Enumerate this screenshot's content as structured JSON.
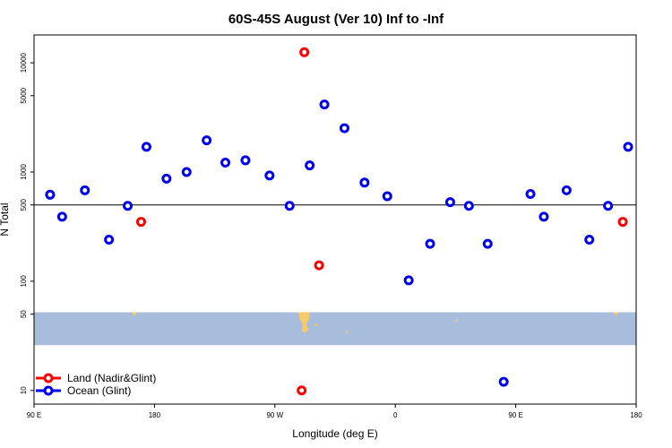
{
  "chart_data": {
    "type": "scatter",
    "title": "60S-45S August (Ver 10)   Inf to -Inf",
    "xlabel": "Longitude (deg E)",
    "ylabel": "N Total",
    "x_axis": {
      "ticks": [
        {
          "pos": 0,
          "label": "90 E"
        },
        {
          "pos": 90,
          "label": "180"
        },
        {
          "pos": 180,
          "label": "90 W"
        },
        {
          "pos": 270,
          "label": "0"
        },
        {
          "pos": 360,
          "label": "90 E"
        },
        {
          "pos": 450,
          "label": "180"
        }
      ],
      "range": [
        0,
        450
      ],
      "note": "position = degrees east of 90E, spanning 90E eastward through 180 to 180 again"
    },
    "y_axis": {
      "scale": "log",
      "ticks": [
        10,
        50,
        100,
        500,
        1000,
        5000,
        10000
      ],
      "range": [
        7.5,
        18000
      ]
    },
    "reference_line": 500,
    "map_strip": {
      "y_from": 26,
      "y_to": 52,
      "color": "#a8bddb",
      "land_color": "#f7c96a"
    },
    "series": [
      {
        "name": "Land (Nadir&Glint)",
        "color": "#ff0000",
        "points": [
          {
            "x": 80,
            "y": 350
          },
          {
            "x": 200,
            "y": 10
          },
          {
            "x": 202,
            "y": 12500
          },
          {
            "x": 213,
            "y": 140
          },
          {
            "x": 440,
            "y": 350
          }
        ]
      },
      {
        "name": "Ocean (Glint)",
        "color": "#0000ee",
        "points": [
          {
            "x": 12,
            "y": 620
          },
          {
            "x": 21,
            "y": 390
          },
          {
            "x": 38,
            "y": 680
          },
          {
            "x": 56,
            "y": 240
          },
          {
            "x": 70,
            "y": 490
          },
          {
            "x": 84,
            "y": 1700
          },
          {
            "x": 99,
            "y": 870
          },
          {
            "x": 114,
            "y": 1000
          },
          {
            "x": 129,
            "y": 1950
          },
          {
            "x": 143,
            "y": 1220
          },
          {
            "x": 158,
            "y": 1280
          },
          {
            "x": 176,
            "y": 930
          },
          {
            "x": 191,
            "y": 490
          },
          {
            "x": 206,
            "y": 1150
          },
          {
            "x": 217,
            "y": 4150
          },
          {
            "x": 232,
            "y": 2520
          },
          {
            "x": 247,
            "y": 800
          },
          {
            "x": 264,
            "y": 600
          },
          {
            "x": 280,
            "y": 102
          },
          {
            "x": 296,
            "y": 220
          },
          {
            "x": 311,
            "y": 530
          },
          {
            "x": 325,
            "y": 490
          },
          {
            "x": 339,
            "y": 220
          },
          {
            "x": 351,
            "y": 12
          },
          {
            "x": 371,
            "y": 630
          },
          {
            "x": 381,
            "y": 390
          },
          {
            "x": 398,
            "y": 680
          },
          {
            "x": 415,
            "y": 240
          },
          {
            "x": 429,
            "y": 490
          },
          {
            "x": 444,
            "y": 1700
          }
        ]
      }
    ],
    "legend": {
      "position": "bottom-left"
    }
  }
}
